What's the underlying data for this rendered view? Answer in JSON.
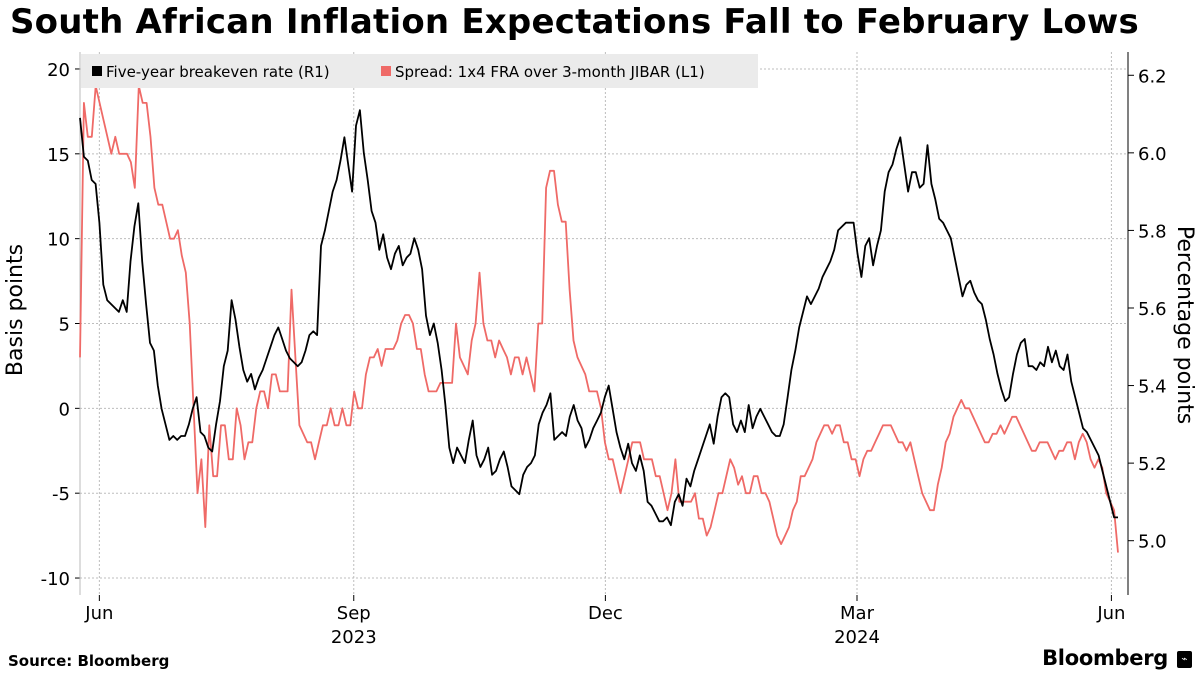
{
  "title": "South African Inflation Expectations Fall to February Lows",
  "source": "Source: Bloomberg",
  "brand": "Bloomberg",
  "colors": {
    "breakeven": "#000000",
    "spread": "#ef6a67",
    "grid": "#bdbdbd",
    "legend_bg": "#ebebeb"
  },
  "chart_data": {
    "type": "line",
    "x_axis": {
      "start_month": "2023-05-25",
      "end_month": "2024-06-07",
      "ticks": [
        {
          "label": "Jun",
          "date": "2023-06-01"
        },
        {
          "label": "Sep",
          "date": "2023-09-01"
        },
        {
          "label": "Dec",
          "date": "2023-12-01"
        },
        {
          "label": "Mar",
          "date": "2024-03-01"
        },
        {
          "label": "Jun",
          "date": "2024-06-01"
        }
      ],
      "year_labels": [
        {
          "label": "2023",
          "date": "2023-09-01"
        },
        {
          "label": "2024",
          "date": "2024-03-01"
        }
      ]
    },
    "left_axis": {
      "label": "Basis points",
      "ylim": [
        -11,
        21
      ],
      "ticks": [
        "20",
        "15",
        "10",
        "5",
        "0",
        "-5",
        "-10"
      ]
    },
    "right_axis": {
      "label": "Percentage points",
      "ylim": [
        4.86,
        6.26
      ],
      "ticks": [
        "6.2",
        "6.0",
        "5.8",
        "5.6",
        "5.4",
        "5.2",
        "5.0"
      ]
    },
    "legend": [
      {
        "label": "Five-year breakeven rate (R1)",
        "color": "#000000"
      },
      {
        "label": "Spread: 1x4 FRA over 3-month JIBAR (L1)",
        "color": "#ef6a67"
      }
    ],
    "series": [
      {
        "name": "Five-year breakeven rate (R1)",
        "axis": "right",
        "values": [
          6.09,
          5.99,
          5.98,
          5.93,
          5.92,
          5.82,
          5.66,
          5.62,
          5.61,
          5.6,
          5.59,
          5.62,
          5.59,
          5.72,
          5.81,
          5.87,
          5.72,
          5.61,
          5.51,
          5.49,
          5.4,
          5.34,
          5.3,
          5.26,
          5.27,
          5.26,
          5.27,
          5.27,
          5.3,
          5.34,
          5.37,
          5.28,
          5.27,
          5.24,
          5.23,
          5.3,
          5.36,
          5.45,
          5.49,
          5.62,
          5.57,
          5.5,
          5.44,
          5.41,
          5.43,
          5.39,
          5.42,
          5.44,
          5.47,
          5.5,
          5.53,
          5.55,
          5.52,
          5.49,
          5.47,
          5.46,
          5.45,
          5.46,
          5.49,
          5.53,
          5.54,
          5.53,
          5.76,
          5.8,
          5.85,
          5.9,
          5.93,
          5.98,
          6.04,
          5.97,
          5.9,
          6.07,
          6.11,
          6.0,
          5.93,
          5.85,
          5.82,
          5.75,
          5.79,
          5.73,
          5.7,
          5.74,
          5.76,
          5.71,
          5.73,
          5.74,
          5.78,
          5.75,
          5.7,
          5.58,
          5.53,
          5.56,
          5.51,
          5.44,
          5.35,
          5.24,
          5.2,
          5.24,
          5.22,
          5.2,
          5.26,
          5.31,
          5.22,
          5.19,
          5.21,
          5.24,
          5.17,
          5.18,
          5.21,
          5.23,
          5.19,
          5.14,
          5.13,
          5.12,
          5.17,
          5.19,
          5.2,
          5.22,
          5.3,
          5.33,
          5.35,
          5.38,
          5.26,
          5.27,
          5.28,
          5.27,
          5.32,
          5.35,
          5.31,
          5.29,
          5.24,
          5.26,
          5.29,
          5.31,
          5.33,
          5.37,
          5.4,
          5.34,
          5.28,
          5.24,
          5.21,
          5.25,
          5.2,
          5.18,
          5.22,
          5.18,
          5.1,
          5.09,
          5.07,
          5.05,
          5.05,
          5.06,
          5.04,
          5.1,
          5.12,
          5.09,
          5.16,
          5.14,
          5.18,
          5.21,
          5.24,
          5.27,
          5.3,
          5.25,
          5.32,
          5.37,
          5.38,
          5.37,
          5.3,
          5.28,
          5.31,
          5.28,
          5.35,
          5.29,
          5.32,
          5.34,
          5.32,
          5.3,
          5.28,
          5.27,
          5.27,
          5.3,
          5.37,
          5.44,
          5.49,
          5.55,
          5.59,
          5.63,
          5.61,
          5.63,
          5.65,
          5.68,
          5.7,
          5.72,
          5.75,
          5.8,
          5.81,
          5.82,
          5.82,
          5.82,
          5.74,
          5.68,
          5.76,
          5.78,
          5.71,
          5.76,
          5.8,
          5.9,
          5.95,
          5.97,
          6.01,
          6.04,
          5.97,
          5.9,
          5.95,
          5.95,
          5.91,
          5.92,
          6.02,
          5.92,
          5.88,
          5.83,
          5.82,
          5.8,
          5.78,
          5.73,
          5.68,
          5.63,
          5.66,
          5.67,
          5.64,
          5.62,
          5.61,
          5.57,
          5.52,
          5.48,
          5.43,
          5.39,
          5.36,
          5.37,
          5.43,
          5.48,
          5.51,
          5.52,
          5.45,
          5.45,
          5.44,
          5.46,
          5.45,
          5.5,
          5.46,
          5.49,
          5.45,
          5.44,
          5.48,
          5.41,
          5.37,
          5.33,
          5.29,
          5.28,
          5.26,
          5.24,
          5.22,
          5.18,
          5.14,
          5.1,
          5.06,
          5.06
        ]
      },
      {
        "name": "Spread: 1x4 FRA over 3-month JIBAR (L1)",
        "axis": "left",
        "values": [
          3.0,
          18.0,
          16.0,
          16.0,
          19.0,
          18.0,
          17.0,
          16.0,
          15.0,
          16.0,
          15.0,
          15.0,
          15.0,
          14.5,
          13.0,
          19.0,
          18.0,
          18.0,
          16.0,
          13.0,
          12.0,
          12.0,
          11.0,
          10.0,
          10.0,
          10.5,
          9.0,
          8.0,
          5.0,
          0.0,
          -5.0,
          -3.0,
          -7.0,
          -1.0,
          -4.0,
          -4.0,
          -1.0,
          -1.0,
          -3.0,
          -3.0,
          0.0,
          -1.0,
          -3.0,
          -2.0,
          -2.0,
          0.0,
          1.0,
          1.0,
          0.0,
          2.0,
          2.0,
          1.0,
          1.0,
          1.0,
          7.0,
          3.0,
          -1.0,
          -1.5,
          -2.0,
          -2.0,
          -3.0,
          -2.0,
          -1.0,
          -1.0,
          0.0,
          -1.0,
          -1.0,
          0.0,
          -1.0,
          -1.0,
          1.0,
          0.0,
          0.0,
          2.0,
          3.0,
          3.0,
          3.5,
          2.5,
          3.5,
          3.5,
          3.5,
          4.0,
          5.0,
          5.5,
          5.5,
          5.0,
          3.5,
          3.5,
          2.0,
          1.0,
          1.0,
          1.0,
          1.5,
          1.5,
          1.5,
          1.5,
          5.0,
          3.0,
          2.5,
          2.0,
          4.0,
          5.0,
          8.0,
          5.0,
          4.0,
          4.0,
          3.0,
          4.0,
          3.5,
          3.0,
          2.0,
          3.0,
          3.0,
          2.0,
          3.0,
          2.0,
          1.0,
          5.0,
          5.0,
          13.0,
          14.0,
          14.0,
          12.0,
          11.0,
          11.0,
          7.0,
          4.0,
          3.0,
          2.5,
          2.0,
          1.0,
          1.0,
          1.0,
          0.0,
          -2.0,
          -3.0,
          -3.0,
          -4.0,
          -5.0,
          -4.0,
          -3.0,
          -2.0,
          -2.0,
          -2.0,
          -3.0,
          -3.0,
          -3.0,
          -4.0,
          -4.0,
          -5.0,
          -6.0,
          -5.0,
          -3.0,
          -5.5,
          -5.5,
          -5.5,
          -5.5,
          -5.0,
          -6.5,
          -6.5,
          -7.5,
          -7.0,
          -6.0,
          -5.0,
          -5.0,
          -4.0,
          -3.0,
          -3.5,
          -4.5,
          -4.0,
          -5.0,
          -5.0,
          -4.0,
          -4.0,
          -5.0,
          -5.0,
          -5.5,
          -6.5,
          -7.5,
          -8.0,
          -7.5,
          -7.0,
          -6.0,
          -5.5,
          -4.0,
          -4.0,
          -3.5,
          -3.0,
          -2.0,
          -1.5,
          -1.0,
          -1.0,
          -1.5,
          -1.0,
          -1.0,
          -2.0,
          -2.0,
          -3.0,
          -3.0,
          -4.0,
          -3.0,
          -2.5,
          -2.5,
          -2.0,
          -1.5,
          -1.0,
          -1.0,
          -1.0,
          -1.5,
          -2.0,
          -2.0,
          -2.5,
          -2.0,
          -3.0,
          -4.0,
          -5.0,
          -5.5,
          -6.0,
          -6.0,
          -4.5,
          -3.5,
          -2.0,
          -1.5,
          -0.5,
          0.0,
          0.5,
          0.0,
          0.0,
          -0.5,
          -1.0,
          -1.5,
          -2.0,
          -2.0,
          -1.5,
          -1.5,
          -1.0,
          -1.5,
          -1.0,
          -0.5,
          -0.5,
          -1.0,
          -1.5,
          -2.0,
          -2.5,
          -2.5,
          -2.0,
          -2.0,
          -2.0,
          -2.5,
          -3.0,
          -2.5,
          -2.5,
          -2.0,
          -2.0,
          -3.0,
          -2.0,
          -1.5,
          -2.0,
          -3.0,
          -3.5,
          -3.0,
          -3.5,
          -5.0,
          -5.5,
          -6.0,
          -8.5
        ]
      }
    ]
  }
}
